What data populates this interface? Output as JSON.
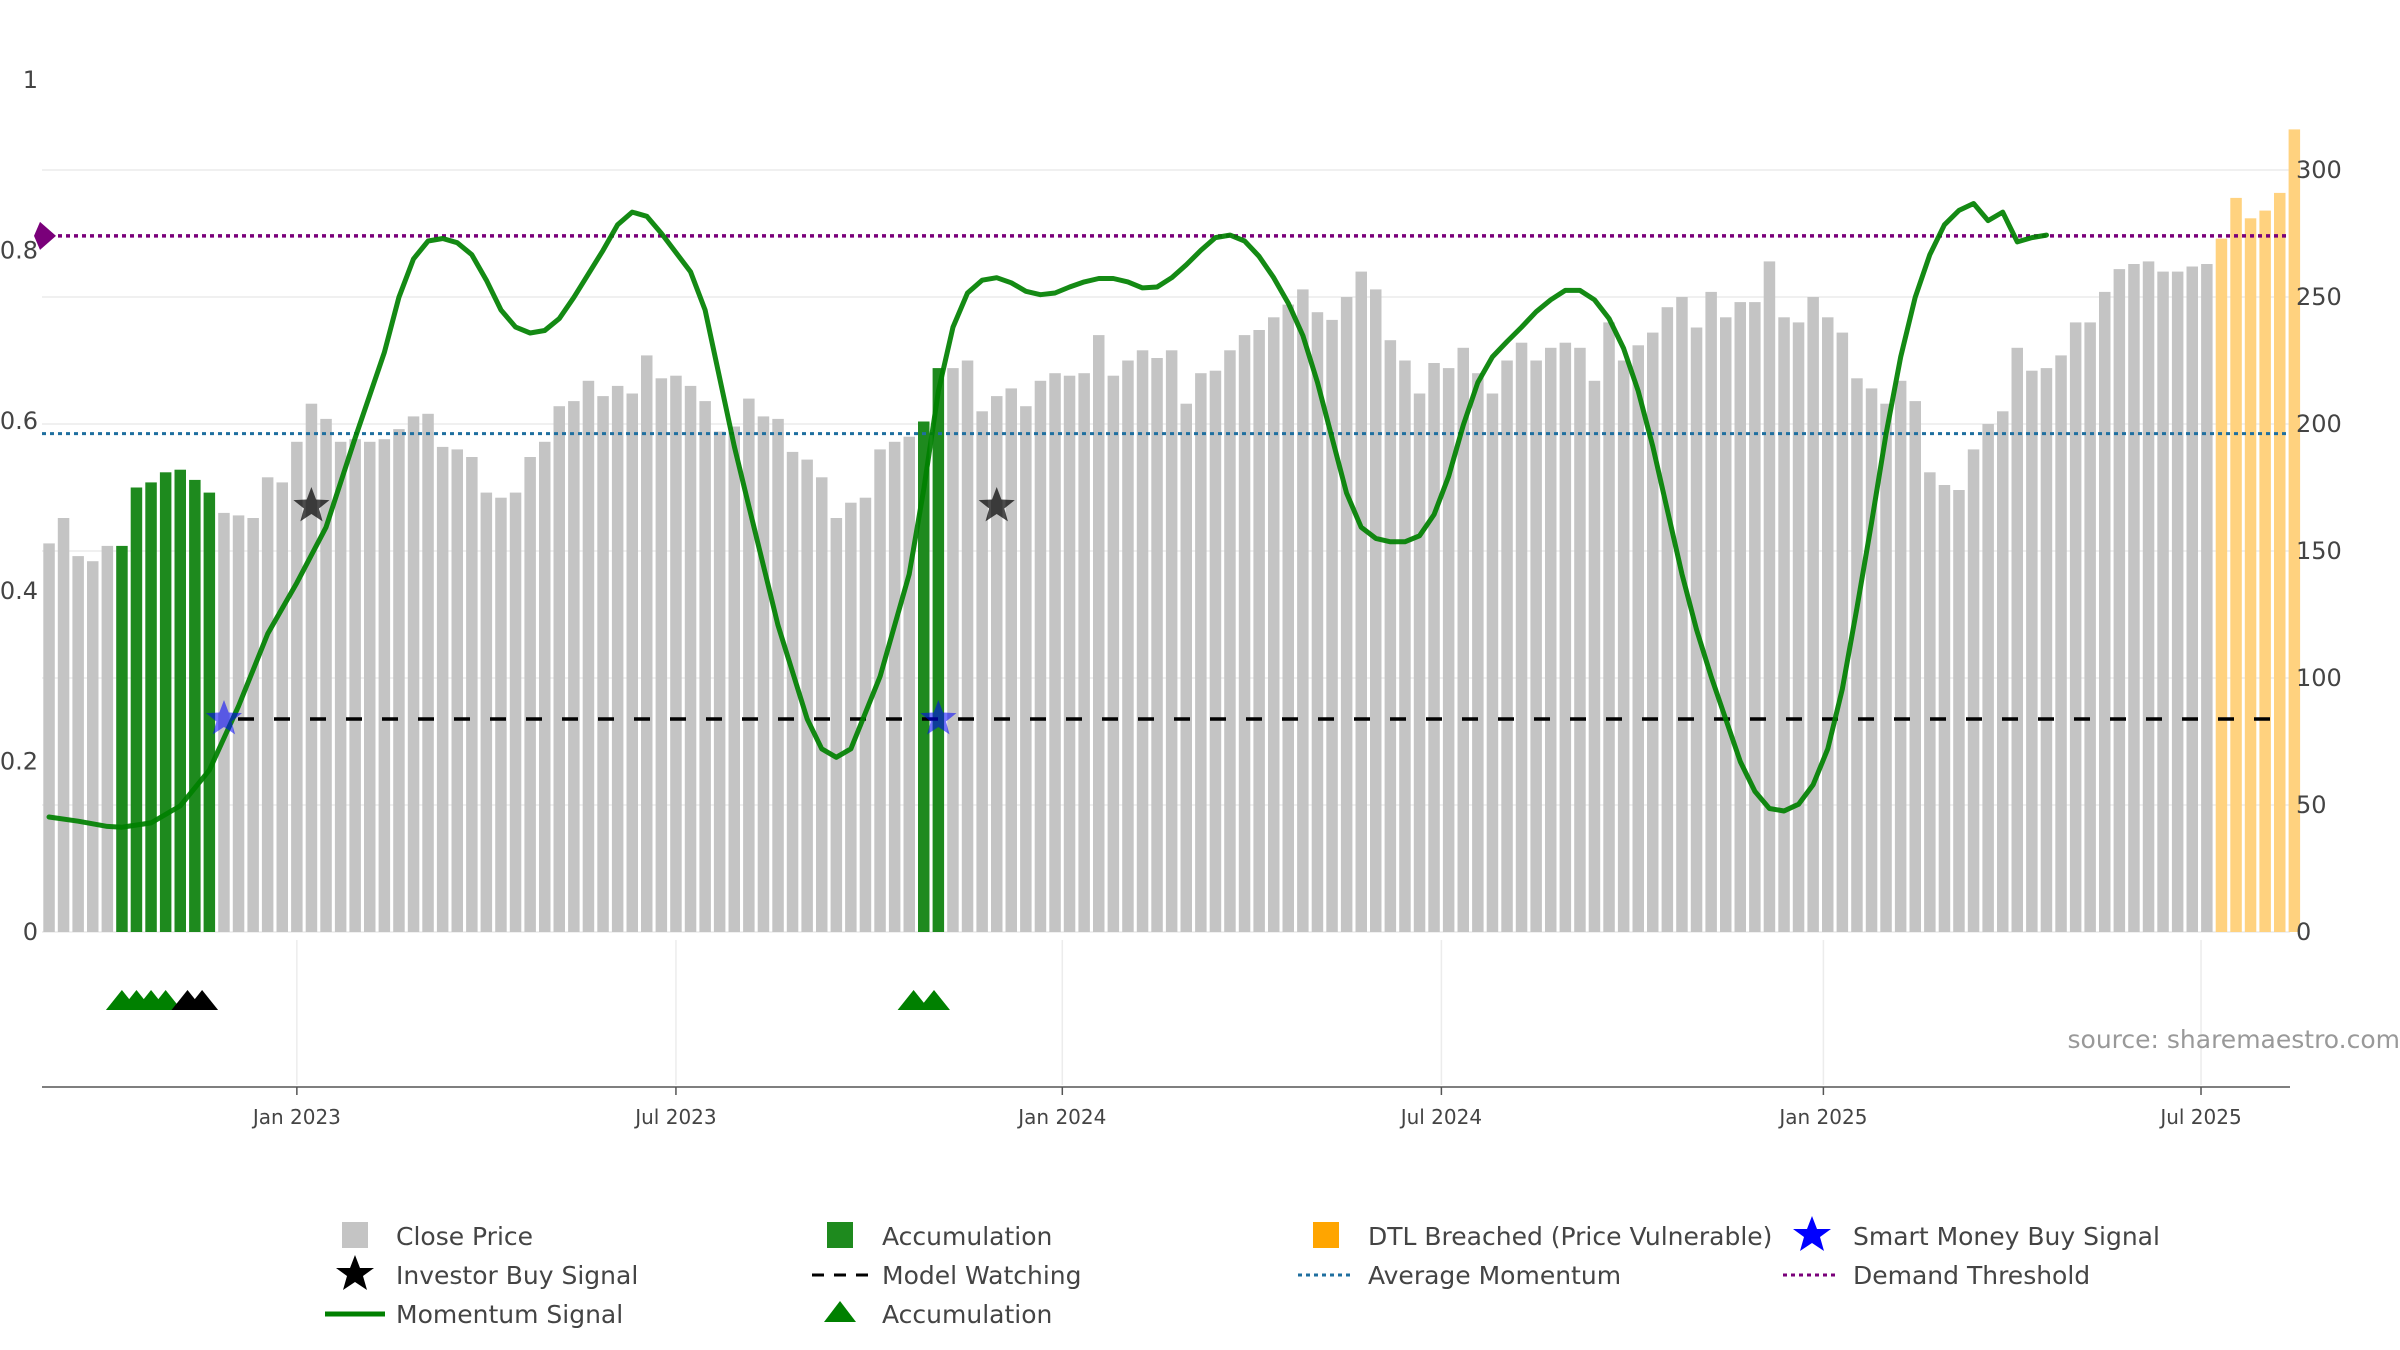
{
  "chart_data": {
    "type": "bar",
    "title": "",
    "source_text": "source: sharemaestro.com",
    "left_axis": {
      "ticks": [
        "0",
        "0.2",
        "0.4",
        "0.6",
        "0.8",
        "1"
      ],
      "range": [
        0,
        1
      ]
    },
    "right_axis": {
      "ticks": [
        "0",
        "50",
        "100",
        "150",
        "200",
        "250",
        "300"
      ],
      "range": [
        0,
        320
      ]
    },
    "x_axis": {
      "ticks": [
        {
          "label": "Jan 2023",
          "week": 17
        },
        {
          "label": "Jul 2023",
          "week": 43
        },
        {
          "label": "Jan 2024",
          "week": 69.5
        },
        {
          "label": "Jul 2024",
          "week": 95.5
        },
        {
          "label": "Jan 2025",
          "week": 121.7
        },
        {
          "label": "Jul 2025",
          "week": 147.6
        }
      ]
    },
    "close_price": [
      153,
      163,
      148,
      146,
      152,
      152,
      175,
      177,
      181,
      182,
      178,
      173,
      165,
      164,
      163,
      179,
      177,
      193,
      208,
      202,
      193,
      194,
      193,
      194,
      198,
      203,
      204,
      191,
      190,
      187,
      173,
      171,
      173,
      187,
      193,
      207,
      209,
      217,
      211,
      215,
      212,
      227,
      218,
      219,
      215,
      209,
      197,
      199,
      210,
      203,
      202,
      189,
      186,
      179,
      163,
      169,
      171,
      190,
      193,
      195,
      201,
      222,
      222,
      225,
      205,
      211,
      214,
      207,
      217,
      220,
      219,
      220,
      235,
      219,
      225,
      229,
      226,
      229,
      208,
      220,
      221,
      229,
      235,
      237,
      242,
      247,
      253,
      244,
      241,
      250,
      260,
      253,
      233,
      225,
      212,
      224,
      222,
      230,
      220,
      212,
      225,
      232,
      225,
      230,
      232,
      230,
      217,
      240,
      225,
      231,
      236,
      246,
      250,
      238,
      252,
      242,
      248,
      248,
      264,
      242,
      240,
      250,
      242,
      236,
      218,
      214,
      208,
      217,
      209,
      181,
      176,
      174,
      190,
      200,
      205,
      230,
      221,
      222,
      227,
      240,
      240,
      252,
      261,
      263,
      264,
      260,
      260,
      262,
      263,
      273,
      289,
      281,
      284,
      291,
      316
    ],
    "accumulation_bars": [
      5,
      6,
      7,
      8,
      9,
      10,
      11,
      60,
      61
    ],
    "dtl_breached_from": 149,
    "momentum": [
      [
        0,
        0.135
      ],
      [
        2,
        0.13
      ],
      [
        4,
        0.124
      ],
      [
        5,
        0.123
      ],
      [
        7,
        0.128
      ],
      [
        9,
        0.148
      ],
      [
        11,
        0.19
      ],
      [
        13,
        0.265
      ],
      [
        15,
        0.35
      ],
      [
        17,
        0.41
      ],
      [
        19,
        0.475
      ],
      [
        21,
        0.58
      ],
      [
        23,
        0.68
      ],
      [
        24,
        0.745
      ],
      [
        25,
        0.79
      ],
      [
        26,
        0.811
      ],
      [
        27,
        0.814
      ],
      [
        28,
        0.809
      ],
      [
        29,
        0.795
      ],
      [
        30,
        0.765
      ],
      [
        31,
        0.73
      ],
      [
        32,
        0.71
      ],
      [
        33,
        0.703
      ],
      [
        34,
        0.706
      ],
      [
        35,
        0.72
      ],
      [
        36,
        0.745
      ],
      [
        38,
        0.8
      ],
      [
        39,
        0.83
      ],
      [
        40,
        0.845
      ],
      [
        41,
        0.84
      ],
      [
        42,
        0.82
      ],
      [
        44,
        0.775
      ],
      [
        45,
        0.73
      ],
      [
        46,
        0.65
      ],
      [
        47,
        0.57
      ],
      [
        48,
        0.5
      ],
      [
        49,
        0.43
      ],
      [
        50,
        0.36
      ],
      [
        52,
        0.25
      ],
      [
        53,
        0.215
      ],
      [
        54,
        0.205
      ],
      [
        55,
        0.215
      ],
      [
        57,
        0.3
      ],
      [
        59,
        0.42
      ],
      [
        60,
        0.52
      ],
      [
        61,
        0.635
      ],
      [
        62,
        0.71
      ],
      [
        63,
        0.75
      ],
      [
        64,
        0.765
      ],
      [
        65,
        0.768
      ],
      [
        66,
        0.762
      ],
      [
        67,
        0.752
      ],
      [
        68,
        0.748
      ],
      [
        69,
        0.75
      ],
      [
        70,
        0.757
      ],
      [
        71,
        0.763
      ],
      [
        72,
        0.767
      ],
      [
        73,
        0.767
      ],
      [
        74,
        0.763
      ],
      [
        75,
        0.756
      ],
      [
        76,
        0.757
      ],
      [
        77,
        0.768
      ],
      [
        78,
        0.783
      ],
      [
        79,
        0.8
      ],
      [
        80,
        0.815
      ],
      [
        81,
        0.818
      ],
      [
        82,
        0.811
      ],
      [
        83,
        0.793
      ],
      [
        84,
        0.768
      ],
      [
        85,
        0.738
      ],
      [
        86,
        0.7
      ],
      [
        87,
        0.645
      ],
      [
        88,
        0.58
      ],
      [
        89,
        0.515
      ],
      [
        90,
        0.475
      ],
      [
        91,
        0.462
      ],
      [
        92,
        0.458
      ],
      [
        93,
        0.458
      ],
      [
        94,
        0.465
      ],
      [
        95,
        0.49
      ],
      [
        96,
        0.535
      ],
      [
        97,
        0.595
      ],
      [
        98,
        0.645
      ],
      [
        99,
        0.675
      ],
      [
        100,
        0.693
      ],
      [
        101,
        0.71
      ],
      [
        102,
        0.728
      ],
      [
        103,
        0.742
      ],
      [
        104,
        0.753
      ],
      [
        105,
        0.753
      ],
      [
        106,
        0.742
      ],
      [
        107,
        0.72
      ],
      [
        108,
        0.685
      ],
      [
        109,
        0.635
      ],
      [
        110,
        0.57
      ],
      [
        111,
        0.495
      ],
      [
        112,
        0.42
      ],
      [
        113,
        0.355
      ],
      [
        114,
        0.3
      ],
      [
        115,
        0.25
      ],
      [
        116,
        0.2
      ],
      [
        117,
        0.165
      ],
      [
        118,
        0.145
      ],
      [
        119,
        0.142
      ],
      [
        120,
        0.15
      ],
      [
        121,
        0.173
      ],
      [
        122,
        0.215
      ],
      [
        123,
        0.285
      ],
      [
        124,
        0.38
      ],
      [
        125,
        0.48
      ],
      [
        126,
        0.585
      ],
      [
        127,
        0.675
      ],
      [
        128,
        0.745
      ],
      [
        129,
        0.795
      ],
      [
        130,
        0.83
      ],
      [
        131,
        0.847
      ],
      [
        132,
        0.855
      ],
      [
        133,
        0.835
      ],
      [
        134,
        0.845
      ],
      [
        135,
        0.81
      ],
      [
        136,
        0.815
      ],
      [
        137,
        0.818
      ]
    ],
    "investor_buy_signals": [
      {
        "week": 18,
        "y": 0.5
      },
      {
        "week": 65,
        "y": 0.5
      }
    ],
    "smart_money_buy_signals": [
      {
        "week": 12,
        "y": 0.25
      },
      {
        "week": 61,
        "y": 0.25
      }
    ],
    "model_watching_level": 0.25,
    "average_momentum_level": 0.585,
    "demand_threshold_level": 0.817,
    "accumulation_markers_green": [
      5,
      6,
      7,
      8,
      59.3,
      60.7
    ],
    "accumulation_markers_black": [
      9.5,
      10.5
    ],
    "colors": {
      "close_price": "#c4c4c4",
      "accumulation": "#1e8a1e",
      "dtl_breached": "#ffd27f",
      "momentum": "#008000",
      "average_momentum": "#1f6f9f",
      "demand_threshold": "#7a007a",
      "model_watching": "#000000",
      "smart_money": "#0000ff",
      "investor": "#000000"
    },
    "legend": {
      "close_price": "Close Price",
      "investor_buy_signal": "Investor Buy Signal",
      "momentum_signal": "Momentum Signal",
      "accumulation": "Accumulation",
      "model_watching": "Model Watching",
      "accumulation_marker": "Accumulation",
      "dtl_breached": "DTL Breached (Price Vulnerable)",
      "average_momentum": "Average Momentum",
      "smart_money": "Smart Money Buy Signal",
      "demand_threshold": "Demand Threshold"
    }
  }
}
